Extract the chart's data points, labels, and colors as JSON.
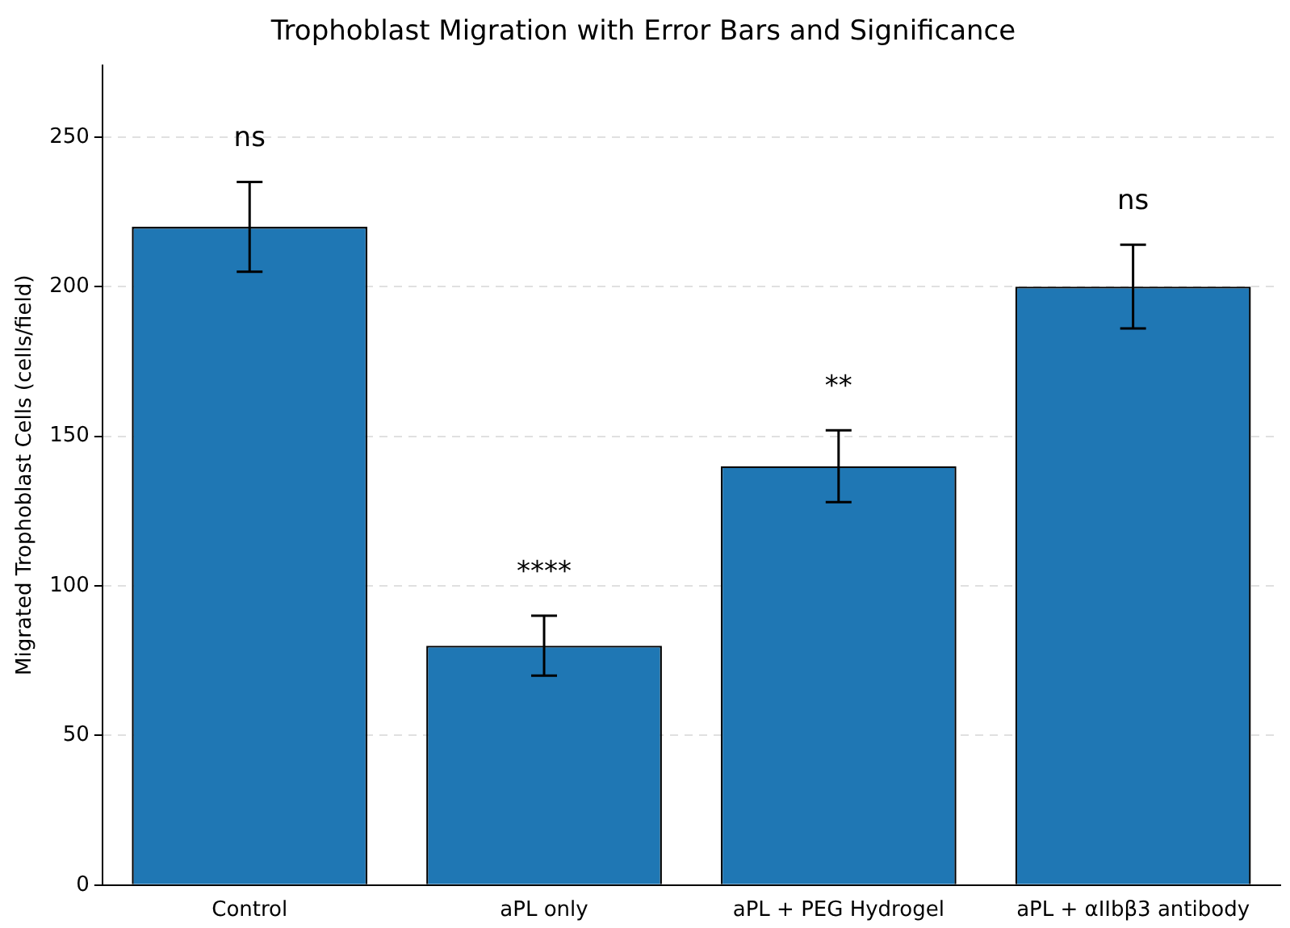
{
  "chart_data": {
    "type": "bar",
    "title": "Trophoblast Migration with Error Bars and Significance",
    "ylabel": "Migrated Trophoblast Cells (cells/field)",
    "categories": [
      "Control",
      "aPL only",
      "aPL + PEG Hydrogel",
      "aPL + αIIbβ3 antibody"
    ],
    "values": [
      220,
      80,
      140,
      200
    ],
    "errors": [
      15,
      10,
      12,
      14
    ],
    "color": "#1f77b4",
    "ylim": [
      0,
      274
    ],
    "yticks": [
      0,
      50,
      100,
      150,
      200,
      250
    ],
    "grid": "y",
    "annotations": [
      "ns",
      "****",
      "**",
      "ns"
    ]
  }
}
